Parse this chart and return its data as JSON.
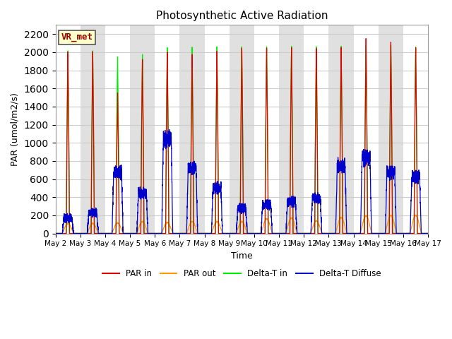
{
  "title": "Photosynthetic Active Radiation",
  "xlabel": "Time",
  "ylabel": "PAR (umol/m2/s)",
  "ylim": [
    0,
    2300
  ],
  "yticks": [
    0,
    200,
    400,
    600,
    800,
    1000,
    1200,
    1400,
    1600,
    1800,
    2000,
    2200
  ],
  "legend_labels": [
    "PAR in",
    "PAR out",
    "Delta-T in",
    "Delta-T Diffuse"
  ],
  "line_colors": [
    "#dd0000",
    "#ff9900",
    "#00ee00",
    "#0000cc"
  ],
  "watermark_text": "VR_met",
  "watermark_fg": "#990000",
  "watermark_bg": "#ffffcc",
  "watermark_edge": "#555555",
  "fig_bg": "#ffffff",
  "plot_bg": "#ffffff",
  "band_color": "#e0e0e0",
  "grid_color": "#cccccc",
  "n_days": 15,
  "day_start": 2,
  "points_per_day": 288,
  "par_in_peaks": [
    2000,
    2005,
    1550,
    1920,
    2000,
    1975,
    2010,
    2045,
    2045,
    2050,
    2040,
    2050,
    2150,
    2110,
    2050
  ],
  "par_out_peaks": [
    110,
    110,
    115,
    130,
    120,
    130,
    130,
    130,
    160,
    170,
    140,
    175,
    195,
    200,
    200
  ],
  "delta_t_peaks": [
    2015,
    2015,
    1950,
    1975,
    2050,
    2055,
    2060,
    2060,
    2060,
    2065,
    2060,
    2065,
    2075,
    2075,
    2055
  ],
  "delta_diffuse_peaks": [
    155,
    205,
    650,
    420,
    1010,
    700,
    480,
    260,
    300,
    330,
    365,
    720,
    800,
    640,
    600
  ]
}
